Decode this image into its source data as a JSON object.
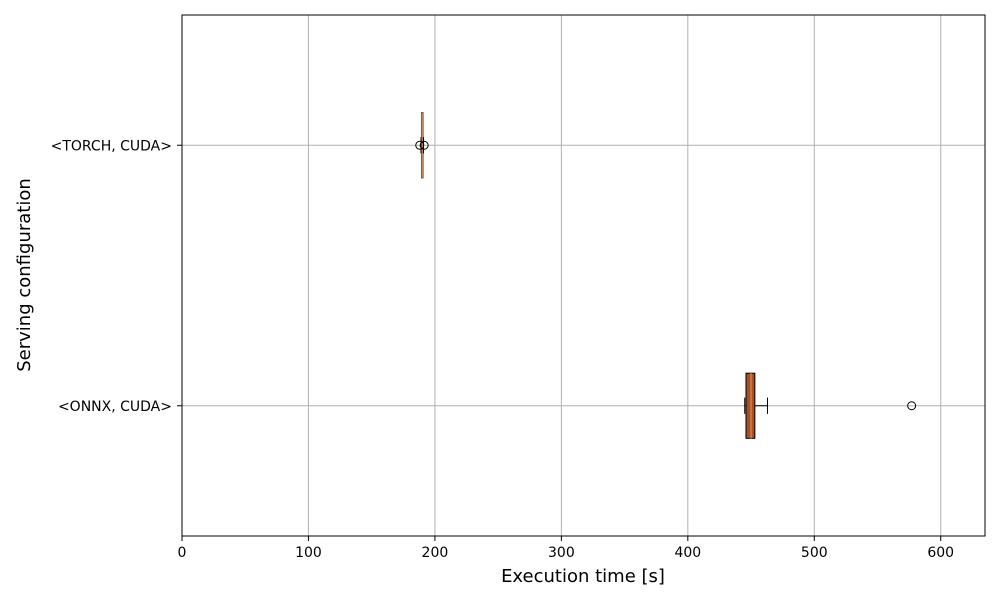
{
  "chart_data": {
    "type": "boxplot",
    "orientation": "horizontal",
    "xlabel": "Execution time [s]",
    "ylabel": "Serving configuration",
    "xlim": [
      0,
      635
    ],
    "xticks": [
      0,
      100,
      200,
      300,
      400,
      500,
      600
    ],
    "grid": true,
    "legend": "none",
    "categories": [
      "<ONNX, CUDA>",
      "<TORCH, CUDA>"
    ],
    "boxes": [
      {
        "category": "<ONNX, CUDA>",
        "whisker_low": 445,
        "q1": 446,
        "median": 450,
        "q3": 453,
        "whisker_high": 463,
        "outliers": [
          577
        ],
        "fill": "#a0522d",
        "median_color": "#e07b39"
      },
      {
        "category": "<TORCH, CUDA>",
        "whisker_low": 189,
        "q1": 189.5,
        "median": 190,
        "q3": 190.5,
        "whisker_high": 191,
        "outliers": [
          188,
          191.5
        ],
        "fill": "#a0522d",
        "median_color": "#e07b39"
      }
    ]
  }
}
